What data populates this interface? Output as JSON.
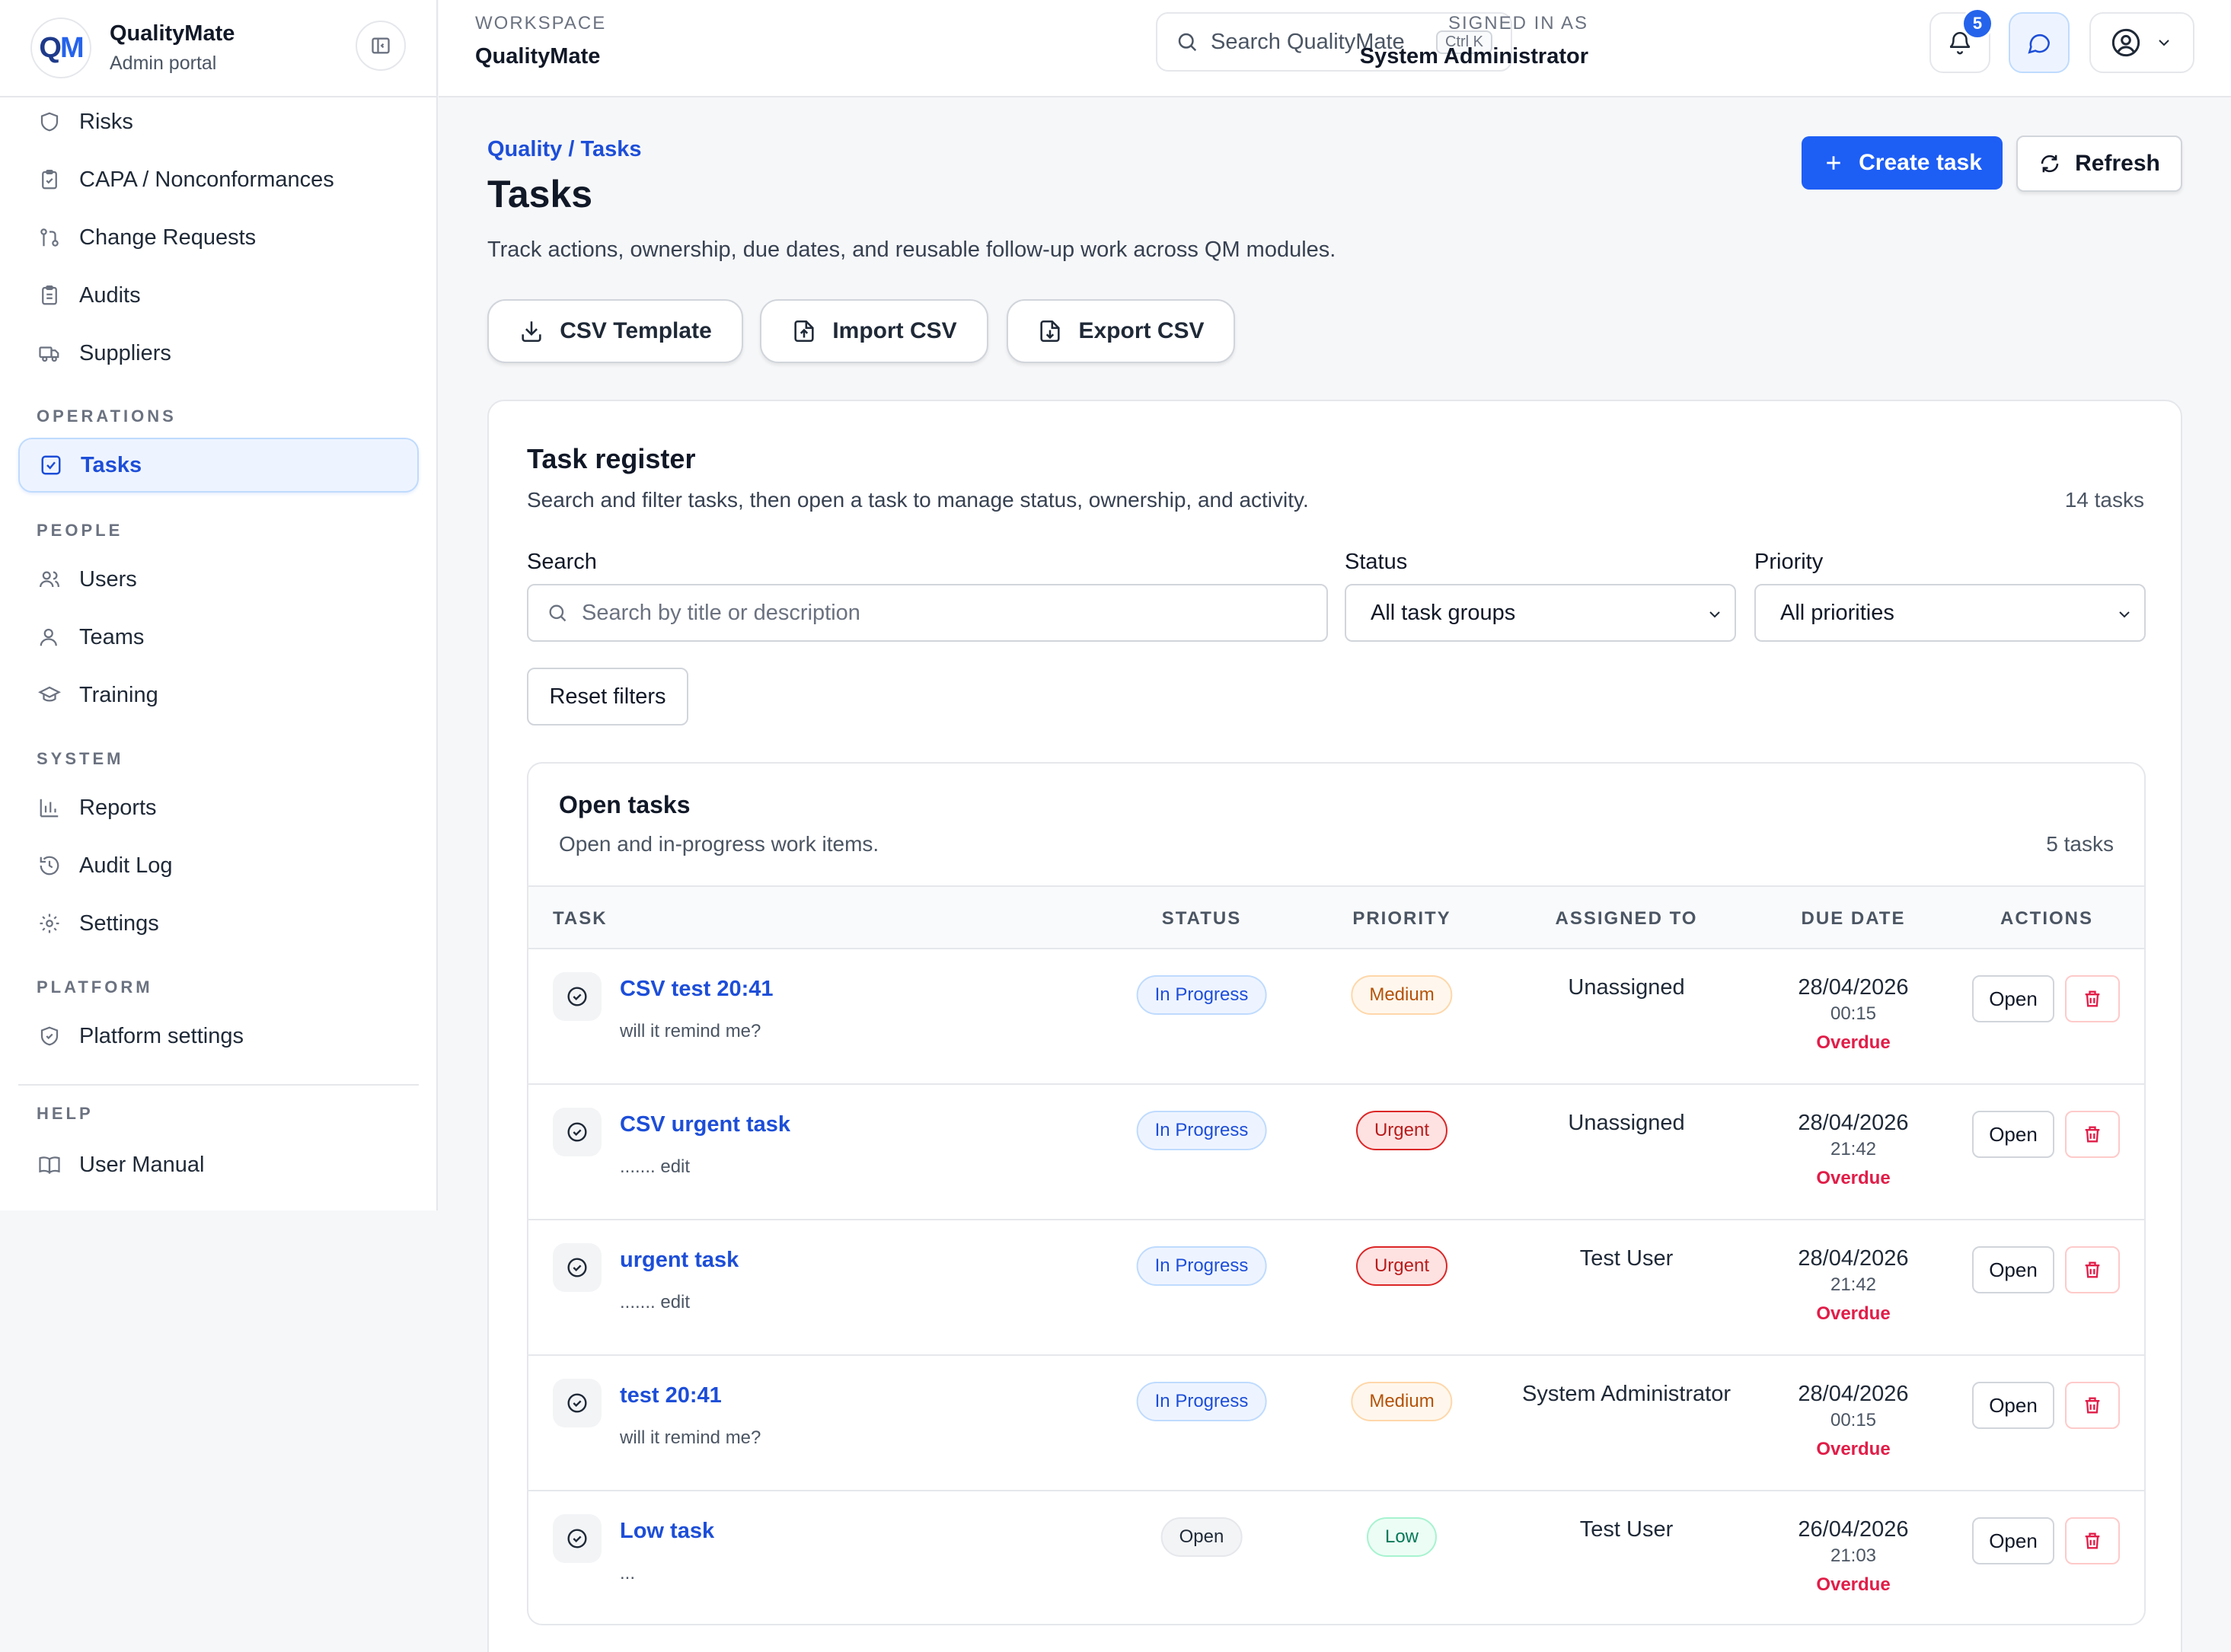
{
  "brand": {
    "logo_q": "Q",
    "logo_m": "M",
    "name": "QualityMate",
    "subtitle": "Admin portal"
  },
  "sidebar": {
    "items_top": [
      {
        "label": "Risks",
        "icon": "shield-icon"
      },
      {
        "label": "CAPA / Nonconformances",
        "icon": "clipboard-check-icon"
      },
      {
        "label": "Change Requests",
        "icon": "git-pull-request-icon"
      },
      {
        "label": "Audits",
        "icon": "clipboard-list-icon"
      },
      {
        "label": "Suppliers",
        "icon": "truck-icon"
      }
    ],
    "sections": {
      "operations": "OPERATIONS",
      "people": "PEOPLE",
      "system": "SYSTEM",
      "platform": "PLATFORM",
      "help": "HELP"
    },
    "operations_items": [
      {
        "label": "Tasks",
        "icon": "square-check-icon",
        "active": true
      }
    ],
    "people_items": [
      {
        "label": "Users",
        "icon": "users-icon"
      },
      {
        "label": "Teams",
        "icon": "user-icon"
      },
      {
        "label": "Training",
        "icon": "graduation-cap-icon"
      }
    ],
    "system_items": [
      {
        "label": "Reports",
        "icon": "bar-chart-icon"
      },
      {
        "label": "Audit Log",
        "icon": "history-icon"
      },
      {
        "label": "Settings",
        "icon": "gear-icon"
      }
    ],
    "platform_items": [
      {
        "label": "Platform settings",
        "icon": "shield-check-icon"
      }
    ],
    "help_items": [
      {
        "label": "User Manual",
        "icon": "book-open-icon"
      }
    ]
  },
  "header": {
    "workspace_label": "WORKSPACE",
    "workspace_name": "QualityMate",
    "search_placeholder": "Search QualityMate",
    "search_shortcut": "Ctrl K",
    "signed_in_label": "SIGNED IN AS",
    "signed_in_name": "System Administrator",
    "notification_count": "5"
  },
  "page": {
    "breadcrumb": "Quality / Tasks",
    "title": "Tasks",
    "subtitle": "Track actions, ownership, due dates, and reusable follow-up work across QM modules.",
    "create_label": "Create task",
    "refresh_label": "Refresh",
    "csv_template_label": "CSV Template",
    "import_csv_label": "Import CSV",
    "export_csv_label": "Export CSV"
  },
  "register": {
    "title": "Task register",
    "subtitle": "Search and filter tasks, then open a task to manage status, ownership, and activity.",
    "count": "14 tasks",
    "search_label": "Search",
    "search_placeholder": "Search by title or description",
    "status_label": "Status",
    "status_value": "All task groups",
    "priority_label": "Priority",
    "priority_value": "All priorities",
    "reset_label": "Reset filters"
  },
  "open_tasks": {
    "title": "Open tasks",
    "subtitle": "Open and in-progress work items.",
    "count": "5 tasks",
    "columns": {
      "task": "TASK",
      "status": "STATUS",
      "priority": "PRIORITY",
      "assigned": "ASSIGNED TO",
      "due": "DUE DATE",
      "actions": "ACTIONS"
    },
    "open_label": "Open",
    "rows": [
      {
        "title": "CSV test 20:41",
        "desc": "will it remind me?",
        "status": "In Progress",
        "status_kind": "inprogress",
        "priority": "Medium",
        "priority_kind": "medium",
        "assigned": "Unassigned",
        "due_date": "28/04/2026",
        "due_time": "00:15",
        "due_flag": "Overdue"
      },
      {
        "title": "CSV urgent task",
        "desc": "....... edit",
        "status": "In Progress",
        "status_kind": "inprogress",
        "priority": "Urgent",
        "priority_kind": "urgent",
        "assigned": "Unassigned",
        "due_date": "28/04/2026",
        "due_time": "21:42",
        "due_flag": "Overdue"
      },
      {
        "title": "urgent task",
        "desc": "....... edit",
        "status": "In Progress",
        "status_kind": "inprogress",
        "priority": "Urgent",
        "priority_kind": "urgent",
        "assigned": "Test User",
        "due_date": "28/04/2026",
        "due_time": "21:42",
        "due_flag": "Overdue"
      },
      {
        "title": "test 20:41",
        "desc": "will it remind me?",
        "status": "In Progress",
        "status_kind": "inprogress",
        "priority": "Medium",
        "priority_kind": "medium",
        "assigned": "System Administrator",
        "due_date": "28/04/2026",
        "due_time": "00:15",
        "due_flag": "Overdue"
      },
      {
        "title": "Low task",
        "desc": "...",
        "status": "Open",
        "status_kind": "open",
        "priority": "Low",
        "priority_kind": "low",
        "assigned": "Test User",
        "due_date": "26/04/2026",
        "due_time": "21:03",
        "due_flag": "Overdue"
      }
    ]
  }
}
